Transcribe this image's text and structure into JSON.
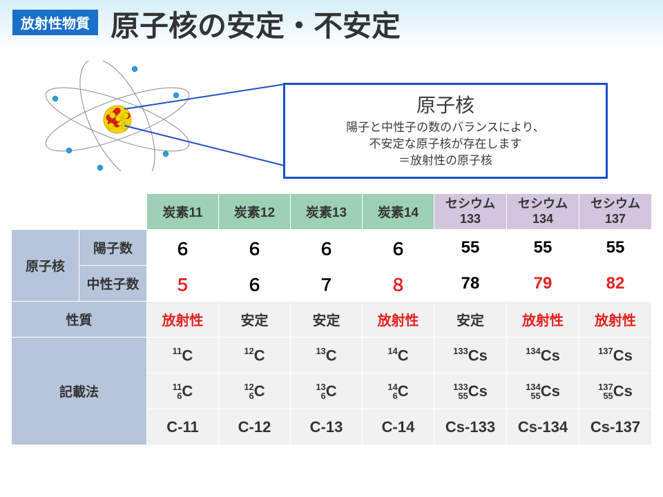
{
  "header": {
    "badge": "放射性物質",
    "title": "原子子核の安定・不安定",
    "title_fixed": "原子核の安定・不安定"
  },
  "infobox": {
    "title": "原子核",
    "line1": "陽子と中性子の数のバランスにより、",
    "line2": "不安定な原子核が存在します",
    "line3": "＝放射性の原子核"
  },
  "colors": {
    "badge_bg": "#1a6fc9",
    "badge_fg": "#ffffff",
    "band_top": "#d6eef8",
    "info_border": "#1a4fc9",
    "hdr_label_bg": "#b7c5da",
    "hdr_c_bg": "#9ed0b6",
    "hdr_cs_bg": "#d3c5de",
    "grey_bg": "#f1f1f1",
    "red": "#e4201f",
    "electron": "#2a9fd6",
    "orbit": "#888888",
    "proton": "#e4201f",
    "neutron": "#f5d800"
  },
  "columns": [
    {
      "label": "炭素11",
      "group": "c"
    },
    {
      "label": "炭素12",
      "group": "c"
    },
    {
      "label": "炭素13",
      "group": "c"
    },
    {
      "label": "炭素14",
      "group": "c"
    },
    {
      "label_l1": "セシウム",
      "label_l2": "133",
      "group": "cs"
    },
    {
      "label_l1": "セシウム",
      "label_l2": "134",
      "group": "cs"
    },
    {
      "label_l1": "セシウム",
      "label_l2": "137",
      "group": "cs"
    }
  ],
  "row_labels": {
    "nucleus": "原子核",
    "protons": "陽子数",
    "neutrons": "中性子数",
    "property": "性質",
    "notation": "記載法"
  },
  "protons": [
    "６",
    "６",
    "６",
    "６",
    "55",
    "55",
    "55"
  ],
  "neutrons": [
    {
      "v": "５",
      "red": true
    },
    {
      "v": "６",
      "red": false
    },
    {
      "v": "７",
      "red": false
    },
    {
      "v": "８",
      "red": true
    },
    {
      "v": "78",
      "red": false
    },
    {
      "v": "79",
      "red": true
    },
    {
      "v": "82",
      "red": true
    }
  ],
  "property": [
    {
      "v": "放射性",
      "red": true
    },
    {
      "v": "安定",
      "red": false
    },
    {
      "v": "安定",
      "red": false
    },
    {
      "v": "放射性",
      "red": true
    },
    {
      "v": "安定",
      "red": false
    },
    {
      "v": "放射性",
      "red": true
    },
    {
      "v": "放射性",
      "red": true
    }
  ],
  "notation1": [
    {
      "mass": "11",
      "el": "C"
    },
    {
      "mass": "12",
      "el": "C"
    },
    {
      "mass": "13",
      "el": "C"
    },
    {
      "mass": "14",
      "el": "C"
    },
    {
      "mass": "133",
      "el": "Cs"
    },
    {
      "mass": "134",
      "el": "Cs"
    },
    {
      "mass": "137",
      "el": "Cs"
    }
  ],
  "notation2": [
    {
      "mass": "11",
      "z": "6",
      "el": "C"
    },
    {
      "mass": "12",
      "z": "6",
      "el": "C"
    },
    {
      "mass": "13",
      "z": "6",
      "el": "C"
    },
    {
      "mass": "14",
      "z": "6",
      "el": "C"
    },
    {
      "mass": "133",
      "z": "55",
      "el": "Cs"
    },
    {
      "mass": "134",
      "z": "55",
      "el": "Cs"
    },
    {
      "mass": "137",
      "z": "55",
      "el": "Cs"
    }
  ],
  "notation3": [
    "C-11",
    "C-12",
    "C-13",
    "C-14",
    "Cs-133",
    "Cs-134",
    "Cs-137"
  ]
}
